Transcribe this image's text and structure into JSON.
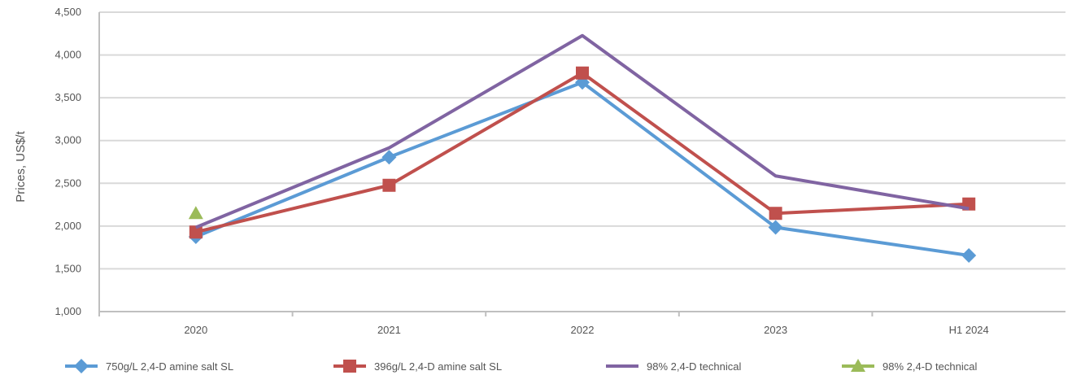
{
  "chart_data": {
    "type": "line",
    "title": "",
    "xlabel": "",
    "ylabel": "Prices, US$/t",
    "categories": [
      "2020",
      "2021",
      "2022",
      "2023",
      "H1 2024"
    ],
    "ylim": [
      1000,
      4200
    ],
    "yticks": [
      "1,000",
      "1,500",
      "2,000",
      "2,500",
      "3,000",
      "3,500",
      "4,000",
      "4,500"
    ],
    "grid": true,
    "legend_position": "bottom",
    "series": [
      {
        "name": "750g/L 2,4-D amine salt SL",
        "color": "#5b9bd5",
        "marker": "diamond",
        "values": [
          1800,
          2650,
          3450,
          1900,
          1600
        ]
      },
      {
        "name": "396g/L 2,4-D amine salt SL",
        "color": "#c0504d",
        "marker": "square",
        "values": [
          1850,
          2350,
          3550,
          2050,
          2150
        ]
      },
      {
        "name": "98% 2,4-D technical",
        "color": "#8064a2",
        "marker": "none",
        "values": [
          1900,
          2750,
          3950,
          2450,
          2100
        ]
      },
      {
        "name": "98% 2,4-D technical",
        "color": "#9bbb59",
        "marker": "triangle",
        "values": [
          2050,
          null,
          null,
          null,
          null
        ]
      }
    ]
  }
}
